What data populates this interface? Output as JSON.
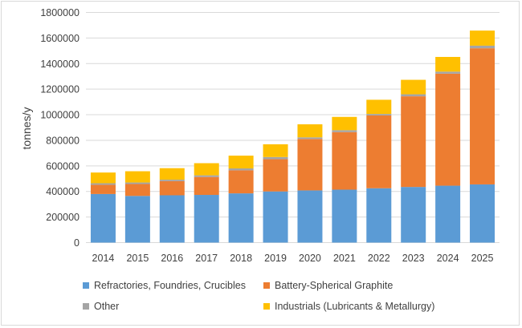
{
  "chart_data": {
    "type": "bar",
    "stacked": true,
    "title": "",
    "xlabel": "",
    "ylabel": "tonnes/y",
    "ylim": [
      0,
      1800000
    ],
    "yticks": [
      0,
      200000,
      400000,
      600000,
      800000,
      1000000,
      1200000,
      1400000,
      1600000,
      1800000
    ],
    "grid": true,
    "legend_position": "bottom",
    "categories": [
      "2014",
      "2015",
      "2016",
      "2017",
      "2018",
      "2019",
      "2020",
      "2021",
      "2022",
      "2023",
      "2024",
      "2025"
    ],
    "series": [
      {
        "name": "Refractories, Foundries, Crucibles",
        "color": "#5b9bd5",
        "values": [
          380000,
          365000,
          370000,
          373000,
          385000,
          400000,
          408000,
          414000,
          425000,
          435000,
          445000,
          455000
        ]
      },
      {
        "name": "Battery-Spherical Graphite",
        "color": "#ed7d31",
        "values": [
          72000,
          93000,
          110000,
          140000,
          180000,
          252000,
          402000,
          450000,
          569000,
          709000,
          876000,
          1065000
        ]
      },
      {
        "name": "Other",
        "color": "#a5a5a5",
        "values": [
          12000,
          12000,
          12000,
          13000,
          15000,
          17000,
          13000,
          15000,
          12000,
          16000,
          16000,
          20000
        ]
      },
      {
        "name": "Industrials (Lubricants & Metallurgy)",
        "color": "#ffc000",
        "values": [
          84000,
          88000,
          90000,
          95000,
          100000,
          100000,
          102000,
          104000,
          111000,
          113000,
          115000,
          118000
        ]
      }
    ]
  }
}
